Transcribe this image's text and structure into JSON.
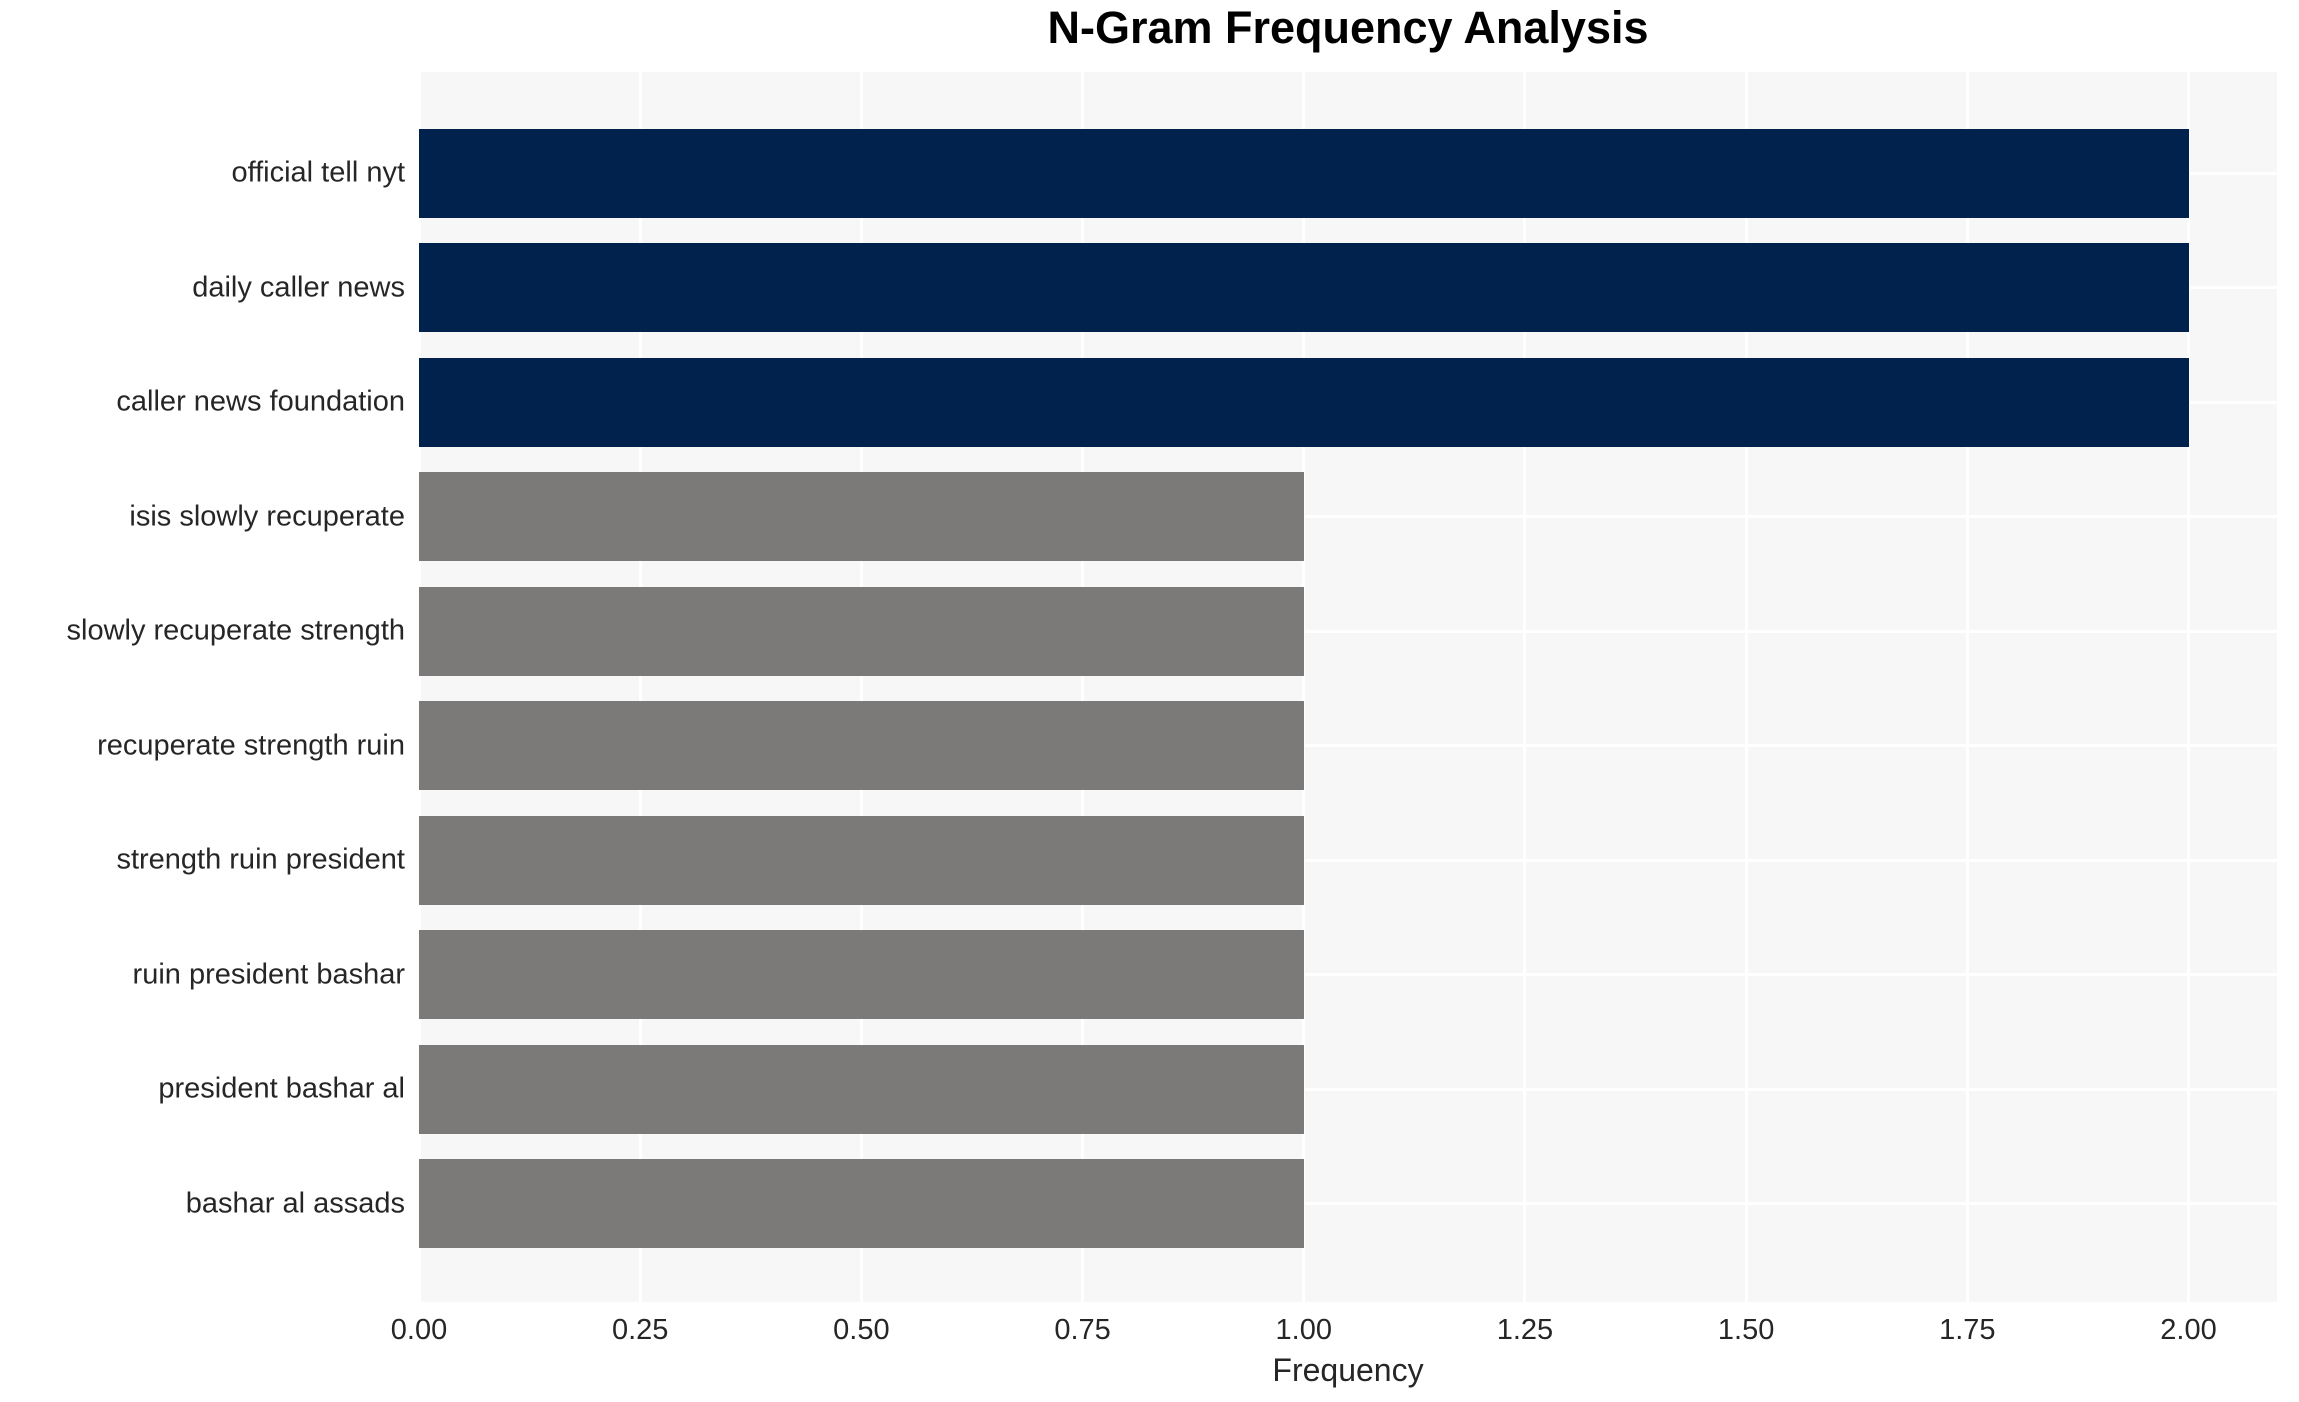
{
  "chart_data": {
    "type": "bar",
    "orientation": "horizontal",
    "title": "N-Gram Frequency Analysis",
    "xlabel": "Frequency",
    "ylabel": "",
    "categories": [
      "official tell nyt",
      "daily caller news",
      "caller news foundation",
      "isis slowly recuperate",
      "slowly recuperate strength",
      "recuperate strength ruin",
      "strength ruin president",
      "ruin president bashar",
      "president bashar al",
      "bashar al assads"
    ],
    "values": [
      2,
      2,
      2,
      1,
      1,
      1,
      1,
      1,
      1,
      1
    ],
    "bar_colors": [
      "#01224D",
      "#01224D",
      "#01224D",
      "#7B7A78",
      "#7B7A78",
      "#7B7A78",
      "#7B7A78",
      "#7B7A78",
      "#7B7A78",
      "#7B7A78"
    ],
    "xlim": [
      0,
      2.1
    ],
    "xticks": [
      0,
      0.25,
      0.5,
      0.75,
      1.0,
      1.25,
      1.5,
      1.75,
      2.0
    ],
    "xtick_labels": [
      "0.00",
      "0.25",
      "0.50",
      "0.75",
      "1.00",
      "1.25",
      "1.50",
      "1.75",
      "2.00"
    ],
    "grid": true,
    "legend": false,
    "colors": {
      "high_value_bar": "#01224D",
      "low_value_bar": "#7B7A78",
      "plot_background": "#F7F7F7",
      "figure_background": "#FFFFFF",
      "gridline": "#FFFFFF",
      "tick_text": "#262626",
      "title_text": "#000000"
    }
  }
}
